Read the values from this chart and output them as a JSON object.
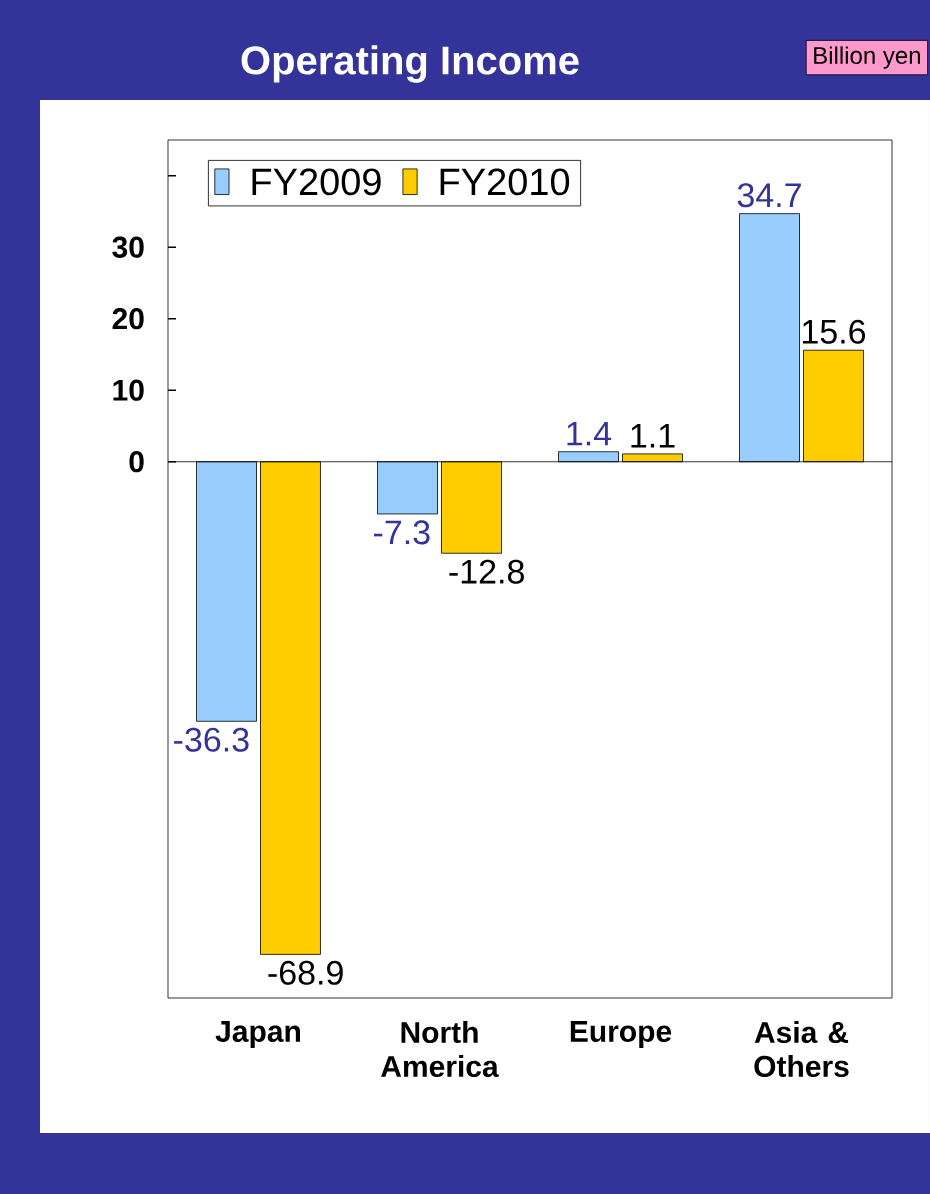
{
  "chart_data": {
    "type": "bar",
    "title": "Operating Income",
    "annotations": [
      "Billion yen"
    ],
    "categories": [
      "Japan",
      "North America",
      "Europe",
      "Asia & Others"
    ],
    "series": [
      {
        "name": "FY2009",
        "color": "#99ccff",
        "values": [
          -36.3,
          -7.3,
          1.4,
          34.7
        ]
      },
      {
        "name": "FY2010",
        "color": "#ffcc00",
        "values": [
          -68.9,
          -12.8,
          1.1,
          15.6
        ]
      }
    ],
    "ylim": [
      -75,
      45
    ],
    "yticks": [
      0,
      10,
      20,
      30,
      {
        "value": 40,
        "label": null
      }
    ],
    "data_labels": true,
    "legend": "top left"
  }
}
